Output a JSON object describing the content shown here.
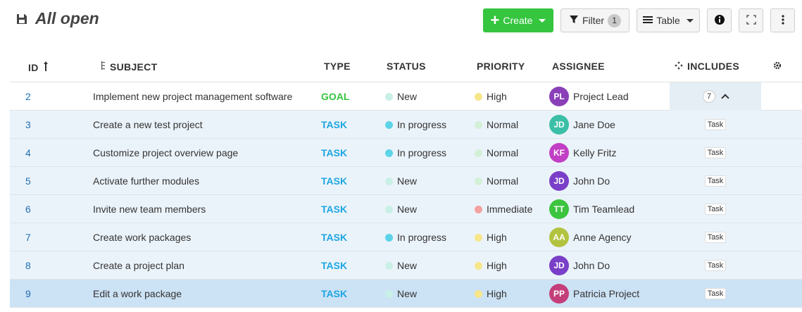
{
  "toolbar": {
    "title": "All open",
    "create_label": "Create",
    "filter_label": "Filter",
    "filter_count": "1",
    "table_label": "Table"
  },
  "columns": {
    "id": "ID",
    "subject": "SUBJECT",
    "type": "TYPE",
    "status": "STATUS",
    "priority": "PRIORITY",
    "assignee": "ASSIGNEE",
    "includes": "INCLUDES"
  },
  "colors": {
    "goal": "#35c53f",
    "task": "#1ca6e2",
    "status_new": "#c9f0e6",
    "status_in_progress": "#5cd4e8",
    "priority_high": "#f7e68a",
    "priority_normal": "#d3f0d8",
    "priority_immediate": "#f2a0a0"
  },
  "rows": [
    {
      "id": "2",
      "subject": "Implement new project management software",
      "type": "GOAL",
      "status": "New",
      "priority": "High",
      "assignee": "Project Lead",
      "initials": "PL",
      "avatar_color": "#8a3fb8",
      "includes_count": "7"
    },
    {
      "id": "3",
      "subject": "Create a new test project",
      "type": "TASK",
      "status": "In progress",
      "priority": "Normal",
      "assignee": "Jane Doe",
      "initials": "JD",
      "avatar_color": "#3bbfa6",
      "includes_tag": "Task"
    },
    {
      "id": "4",
      "subject": "Customize project overview page",
      "type": "TASK",
      "status": "In progress",
      "priority": "Normal",
      "assignee": "Kelly Fritz",
      "initials": "KF",
      "avatar_color": "#c13fc4",
      "includes_tag": "Task"
    },
    {
      "id": "5",
      "subject": "Activate further modules",
      "type": "TASK",
      "status": "New",
      "priority": "Normal",
      "assignee": "John Do",
      "initials": "JD",
      "avatar_color": "#7a3fc8",
      "includes_tag": "Task"
    },
    {
      "id": "6",
      "subject": "Invite new team members",
      "type": "TASK",
      "status": "New",
      "priority": "Immediate",
      "assignee": "Tim Teamlead",
      "initials": "TT",
      "avatar_color": "#3cc43f",
      "includes_tag": "Task"
    },
    {
      "id": "7",
      "subject": "Create work packages",
      "type": "TASK",
      "status": "In progress",
      "priority": "High",
      "assignee": "Anne Agency",
      "initials": "AA",
      "avatar_color": "#b2c33f",
      "includes_tag": "Task"
    },
    {
      "id": "8",
      "subject": "Create a project plan",
      "type": "TASK",
      "status": "New",
      "priority": "High",
      "assignee": "John Do",
      "initials": "JD",
      "avatar_color": "#7a3fc8",
      "includes_tag": "Task"
    },
    {
      "id": "9",
      "subject": "Edit a work package",
      "type": "TASK",
      "status": "New",
      "priority": "High",
      "assignee": "Patricia Project",
      "initials": "PP",
      "avatar_color": "#c43f7a",
      "includes_tag": "Task"
    }
  ]
}
